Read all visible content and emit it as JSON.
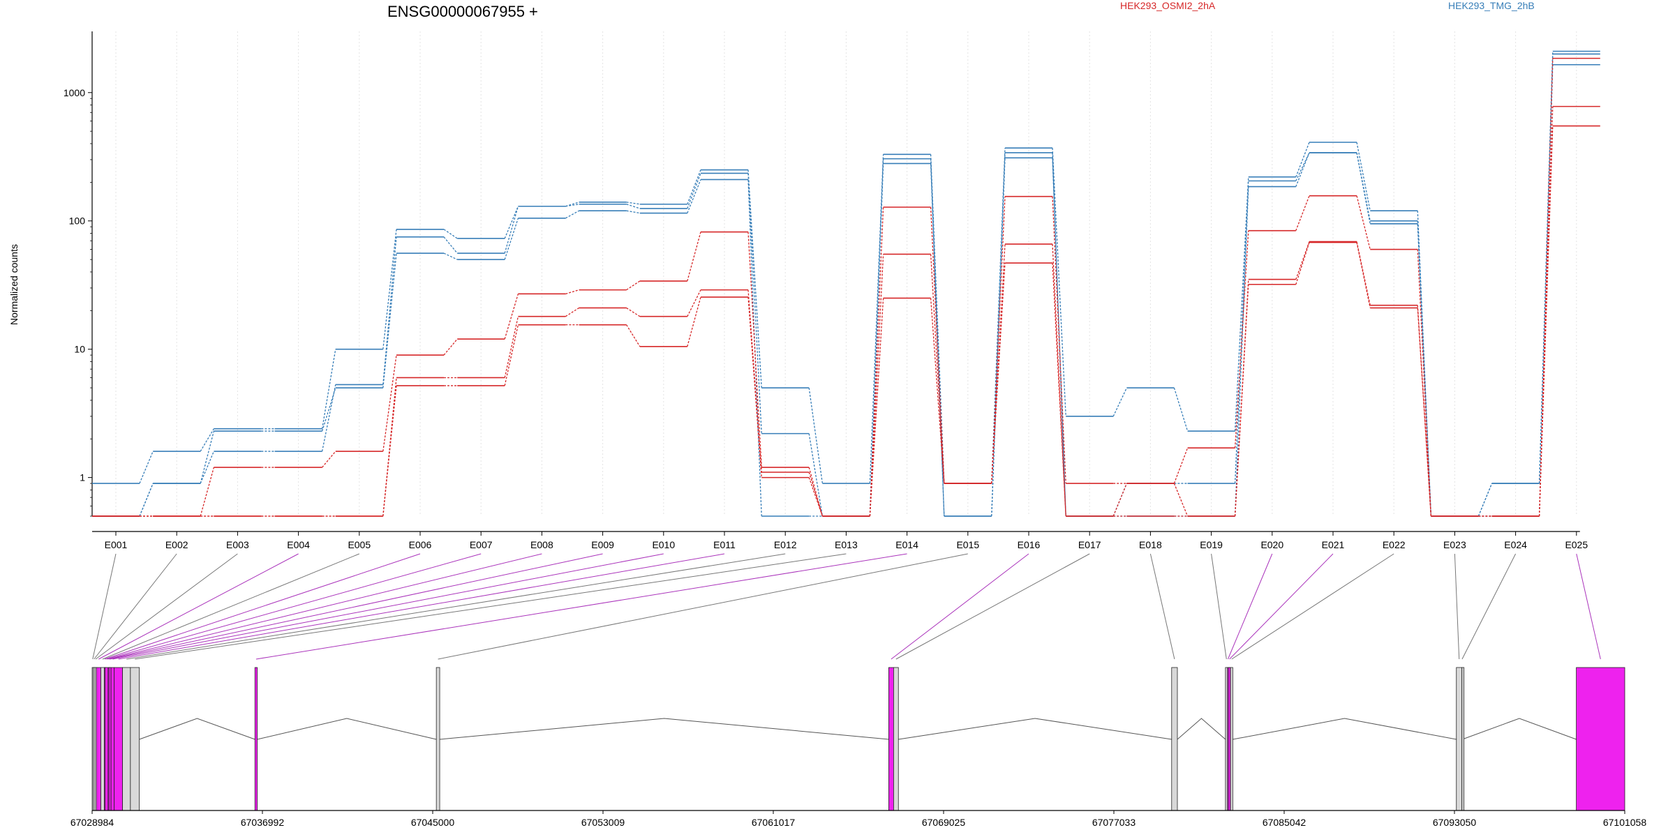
{
  "chart_data": {
    "type": "line",
    "title": "ENSG00000067955 +",
    "ylabel": "Normalized counts",
    "yscale": "log",
    "ylim": [
      0.5,
      3000
    ],
    "yticks": [
      1,
      10,
      100,
      1000
    ],
    "ytick_labels": [
      "1",
      "10",
      "100",
      "1000"
    ],
    "grid": "vertical dotted at exon centers",
    "legend_placement": "top-right",
    "legend": [
      {
        "label": "HEK293_OSMI2_2hA",
        "color": "#d62728"
      },
      {
        "label": "HEK293_TMG_2hB",
        "color": "#377eb8"
      }
    ],
    "categories": [
      "E001",
      "E002",
      "E003",
      "E004",
      "E005",
      "E006",
      "E007",
      "E008",
      "E009",
      "E010",
      "E011",
      "E012",
      "E013",
      "E014",
      "E015",
      "E016",
      "E017",
      "E018",
      "E019",
      "E020",
      "E021",
      "E022",
      "E023",
      "E024",
      "E025"
    ],
    "series": [
      {
        "group": "HEK293_TMG_2hB",
        "color": "#377eb8",
        "values": [
          0.9,
          1.6,
          2.4,
          2.4,
          10,
          86,
          73,
          130,
          140,
          135,
          250,
          5,
          0.9,
          330,
          0.9,
          370,
          3,
          5,
          2.3,
          220,
          410,
          120,
          0.5,
          0.9,
          2100
        ]
      },
      {
        "group": "HEK293_TMG_2hB",
        "color": "#377eb8",
        "values": [
          0.5,
          0.9,
          1.6,
          1.6,
          5.3,
          75,
          56,
          130,
          135,
          125,
          235,
          2.2,
          0.5,
          305,
          0.5,
          340,
          0.5,
          0.9,
          0.9,
          205,
          340,
          95,
          0.5,
          0.9,
          2000
        ]
      },
      {
        "group": "HEK293_TMG_2hB",
        "color": "#377eb8",
        "values": [
          0.5,
          0.9,
          2.3,
          2.3,
          5,
          56,
          50,
          105,
          120,
          115,
          210,
          0.5,
          0.5,
          280,
          0.5,
          310,
          0.5,
          0.5,
          0.5,
          185,
          340,
          100,
          0.5,
          0.5,
          1650
        ]
      },
      {
        "group": "HEK293_OSMI2_2hA",
        "color": "#d62728",
        "values": [
          0.5,
          0.5,
          1.2,
          1.2,
          1.6,
          9,
          12,
          27,
          29,
          34,
          82,
          1.2,
          0.5,
          128,
          0.9,
          155,
          0.9,
          0.9,
          1.7,
          84,
          157,
          60,
          0.5,
          0.5,
          1850
        ]
      },
      {
        "group": "HEK293_OSMI2_2hA",
        "color": "#d62728",
        "values": [
          0.5,
          0.5,
          0.5,
          0.5,
          0.5,
          6,
          6,
          18,
          21,
          18,
          29,
          1.1,
          0.5,
          55,
          0.9,
          66,
          0.5,
          0.9,
          0.5,
          35,
          69,
          22,
          0.5,
          0.5,
          780
        ]
      },
      {
        "group": "HEK293_OSMI2_2hA",
        "color": "#d62728",
        "values": [
          0.5,
          0.5,
          0.5,
          0.5,
          0.5,
          5.2,
          5.2,
          15.5,
          15.5,
          10.5,
          25.5,
          1,
          0.5,
          25,
          0.9,
          47,
          0.5,
          0.5,
          0.5,
          32,
          68,
          21,
          0.5,
          0.5,
          550
        ]
      }
    ],
    "genomic_axis": {
      "range": [
        67028984,
        67101058
      ],
      "tick_labels": [
        "67028984",
        "67036992",
        "67045000",
        "67053009",
        "67061017",
        "67069025",
        "67077033",
        "67085042",
        "67093050",
        "67101058"
      ]
    },
    "exon_positions": [
      {
        "id": "E001",
        "start": 67028984,
        "end": 67029034,
        "highlight": false
      },
      {
        "id": "E002",
        "start": 67029034,
        "end": 67029114,
        "highlight": false
      },
      {
        "id": "E003",
        "start": 67029114,
        "end": 67029184,
        "highlight": false
      },
      {
        "id": "E004",
        "start": 67029184,
        "end": 67029394,
        "highlight": true
      },
      {
        "id": "E005",
        "start": 67029394,
        "end": 67029554,
        "highlight": false
      },
      {
        "id": "E006",
        "start": 67029554,
        "end": 67029594,
        "highlight": true
      },
      {
        "id": "E007",
        "start": 67029594,
        "end": 67029734,
        "highlight": true
      },
      {
        "id": "E008",
        "start": 67029734,
        "end": 67029774,
        "highlight": true
      },
      {
        "id": "E009",
        "start": 67029774,
        "end": 67029874,
        "highlight": true
      },
      {
        "id": "E010",
        "start": 67029874,
        "end": 67030024,
        "highlight": true
      },
      {
        "id": "E011",
        "start": 67030024,
        "end": 67030414,
        "highlight": true
      },
      {
        "id": "E012",
        "start": 67030414,
        "end": 67030784,
        "highlight": false
      },
      {
        "id": "E013",
        "start": 67030784,
        "end": 67031204,
        "highlight": false
      },
      {
        "id": "E014",
        "start": 67036640,
        "end": 67036750,
        "highlight": true
      },
      {
        "id": "E015",
        "start": 67045170,
        "end": 67045330,
        "highlight": false
      },
      {
        "id": "E016",
        "start": 67066445,
        "end": 67066675,
        "highlight": true
      },
      {
        "id": "E017",
        "start": 67066675,
        "end": 67066900,
        "highlight": false
      },
      {
        "id": "E018",
        "start": 67079750,
        "end": 67080020,
        "highlight": false
      },
      {
        "id": "E019",
        "start": 67082280,
        "end": 67082375,
        "highlight": false
      },
      {
        "id": "E020",
        "start": 67082375,
        "end": 67082420,
        "highlight": true
      },
      {
        "id": "E021",
        "start": 67082420,
        "end": 67082520,
        "highlight": true
      },
      {
        "id": "E022",
        "start": 67082520,
        "end": 67082625,
        "highlight": false
      },
      {
        "id": "E023",
        "start": 67093140,
        "end": 67093400,
        "highlight": false
      },
      {
        "id": "E024",
        "start": 67093400,
        "end": 67093420,
        "highlight": false
      },
      {
        "id": "E025",
        "start": 67098780,
        "end": 67101058,
        "highlight": true
      }
    ],
    "colors": {
      "highlight_exon": "#ee22ee",
      "exon": "#d9d9d9",
      "connector": "#777777",
      "highlight_connector": "#aa33bb"
    }
  }
}
